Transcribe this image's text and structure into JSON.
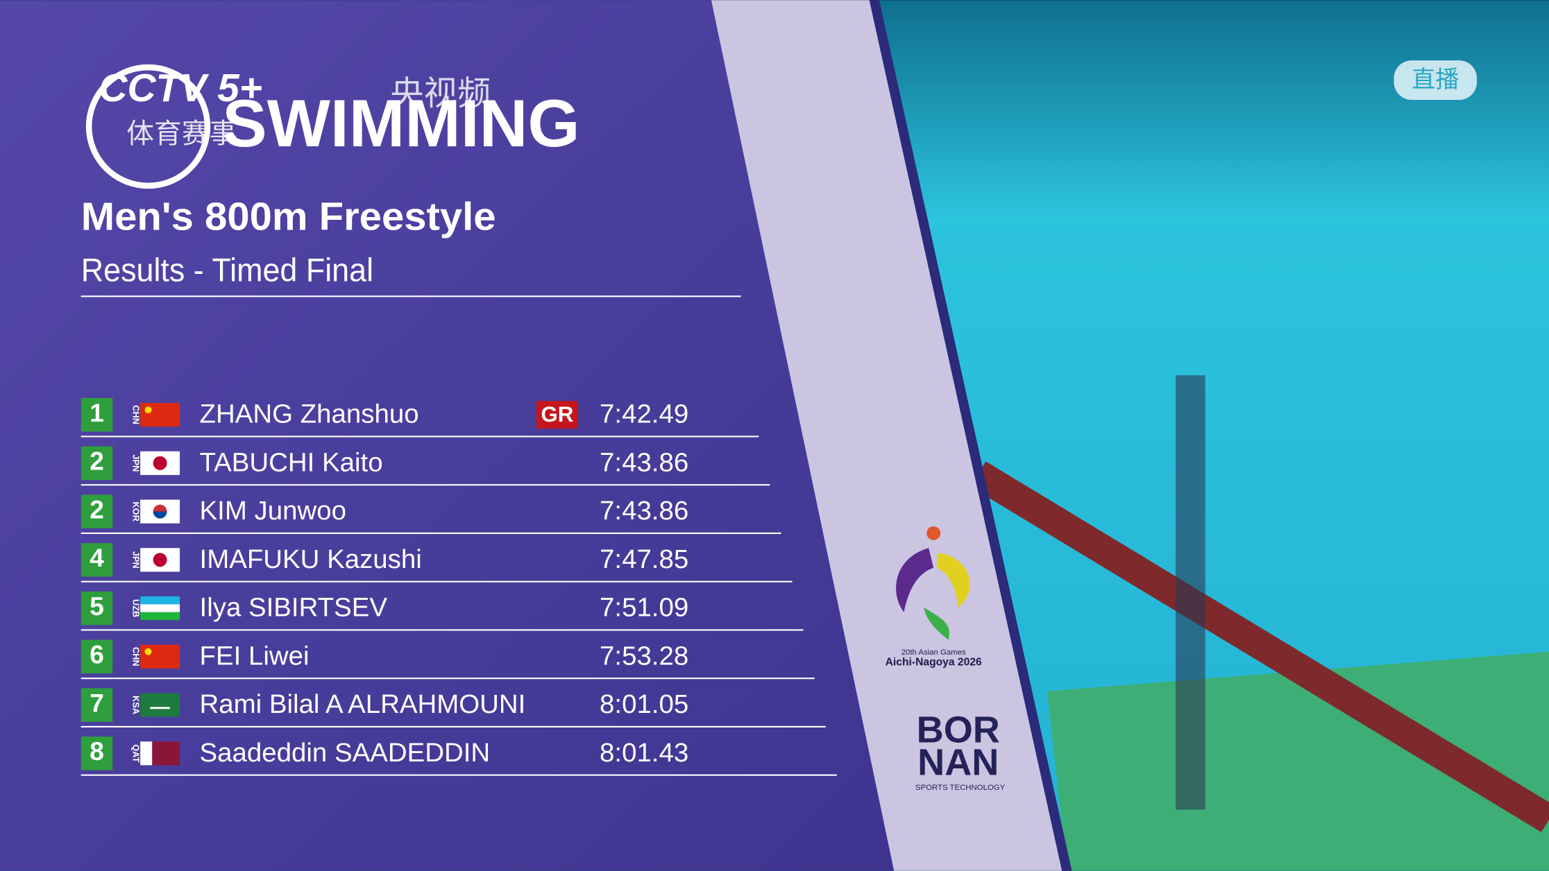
{
  "broadcaster": {
    "channel": "CCTV 5+",
    "app": "央视频",
    "program": "体育赛事",
    "live": "直播"
  },
  "header": {
    "sport": "SWIMMING",
    "event": "Men's 800m Freestyle",
    "phase": "Results - Timed Final"
  },
  "table": {
    "rows": [
      {
        "rank": "1",
        "country": "CHN",
        "name": "ZHANG Zhanshuo",
        "record": "GR",
        "time": "7:42.49"
      },
      {
        "rank": "2",
        "country": "JPN",
        "name": "TABUCHI Kaito",
        "time": "7:43.86"
      },
      {
        "rank": "2",
        "country": "KOR",
        "name": "KIM Junwoo",
        "time": "7:43.86"
      },
      {
        "rank": "4",
        "country": "JPN",
        "name": "IMAFUKU Kazushi",
        "time": "7:47.85"
      },
      {
        "rank": "5",
        "country": "UZB",
        "name": "Ilya SIBIRTSEV",
        "time": "7:51.09"
      },
      {
        "rank": "6",
        "country": "CHN",
        "name": "FEI Liwei",
        "time": "7:53.28"
      },
      {
        "rank": "7",
        "country": "KSA",
        "name": "Rami Bilal A ALRAHMOUNI",
        "time": "8:01.05"
      },
      {
        "rank": "8",
        "country": "QAT",
        "name": "Saadeddin SAADEDDIN",
        "time": "8:01.43"
      }
    ]
  },
  "logos": {
    "games": "20th Asian Games",
    "host": "Aichi-Nagoya 2026",
    "sponsor_top": "BOR",
    "sponsor_bottom": "NAN",
    "sponsor_tagline": "SPORTS TECHNOLOGY"
  }
}
